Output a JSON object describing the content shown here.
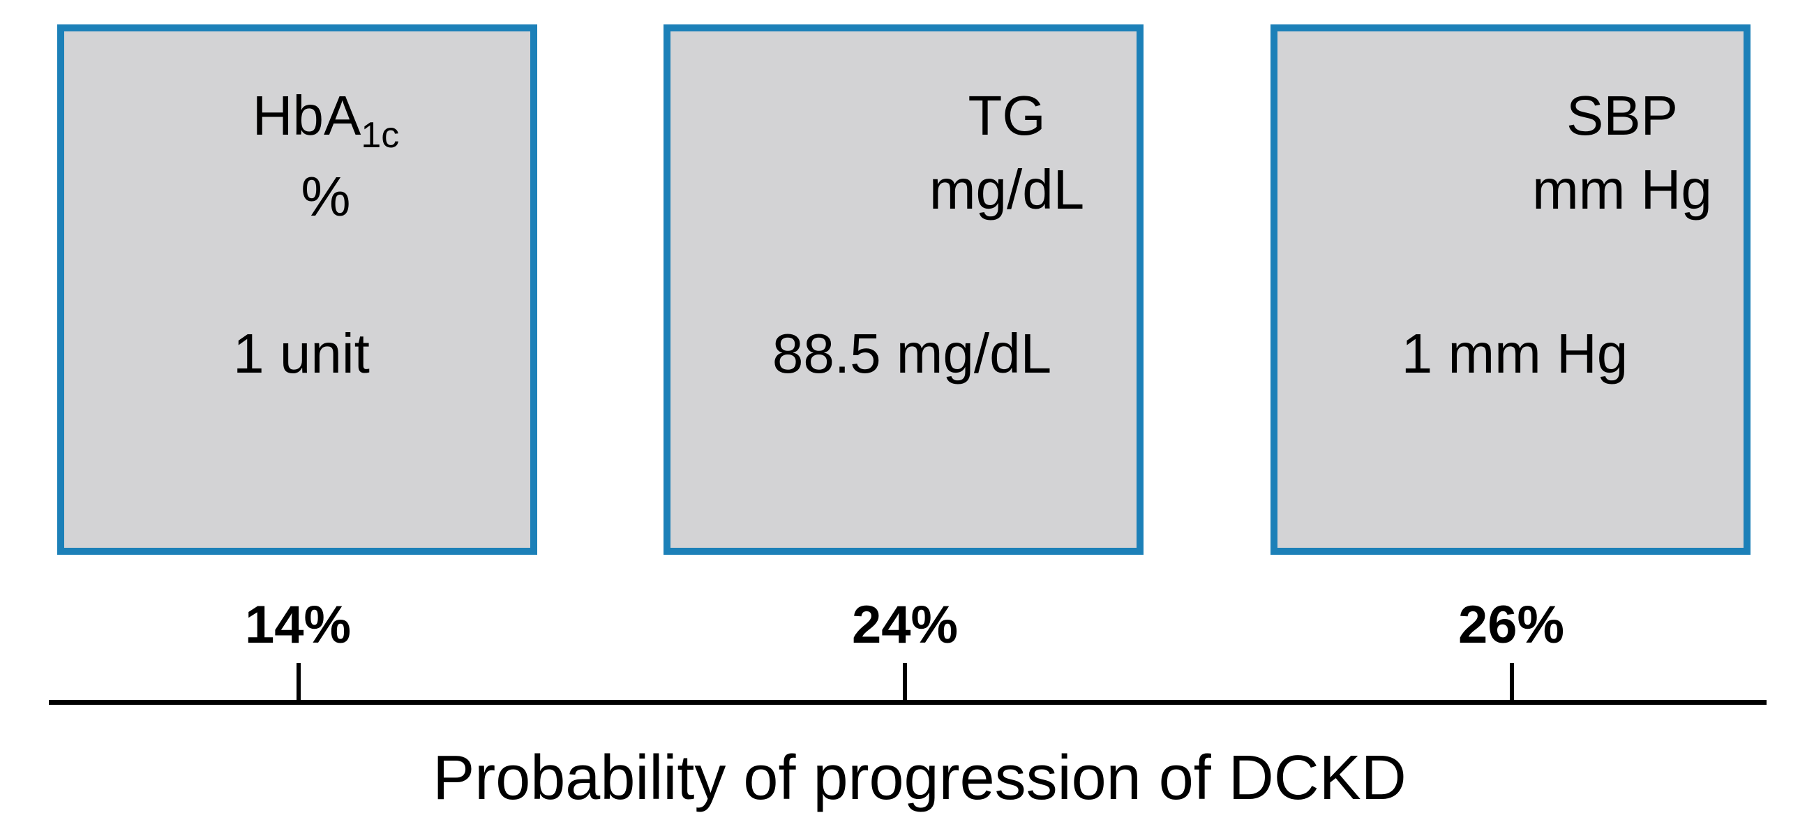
{
  "boxes": [
    {
      "label_main": "HbA",
      "label_sub": "1c",
      "label_unit": "%",
      "value": "1 unit",
      "percent": "14%"
    },
    {
      "label_main": "TG",
      "label_unit": "mg/dL",
      "value": "88.5 mg/dL",
      "percent": "24%"
    },
    {
      "label_main": "SBP",
      "label_unit": "mm Hg",
      "value": "1 mm Hg",
      "percent": "26%"
    }
  ],
  "axis": {
    "title": "Probability of progression of DCKD"
  },
  "colors": {
    "box_fill": "#d3d3d5",
    "box_border": "#1c80b8",
    "text": "#000000"
  }
}
